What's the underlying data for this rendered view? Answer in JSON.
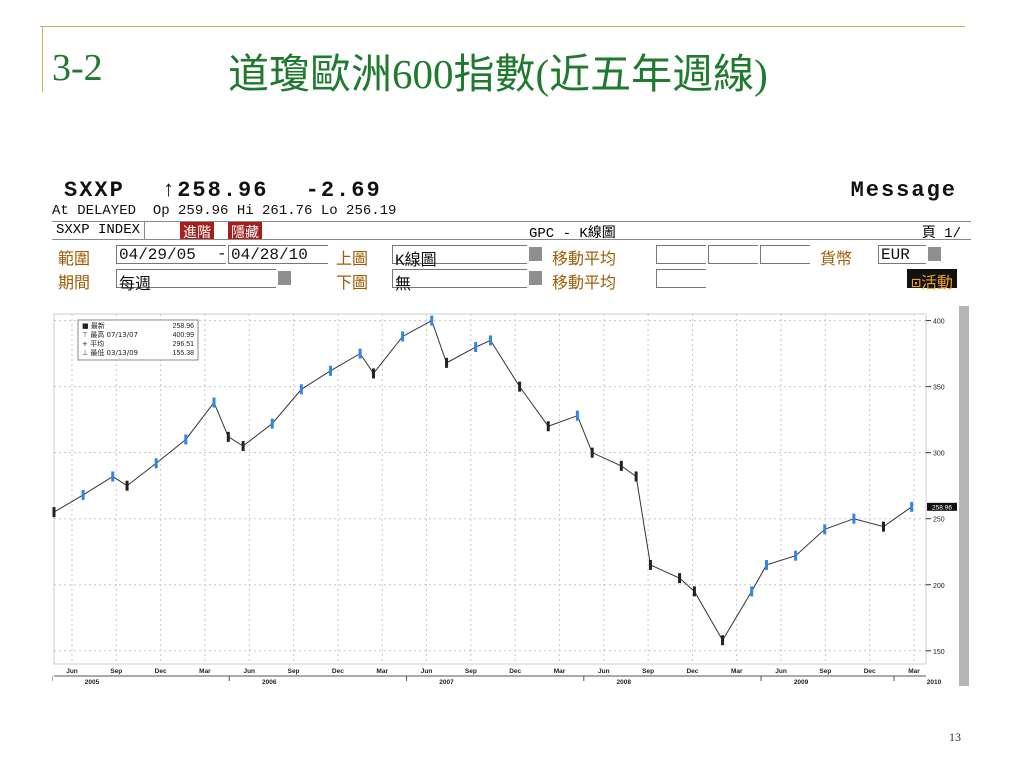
{
  "slide": {
    "number": "3-2",
    "title": "道瓊歐洲600指數(近五年週線)",
    "page_number": "13"
  },
  "terminal": {
    "ticker": "SXXP",
    "last": "↑258.96",
    "change": "-2.69",
    "message": "Message",
    "delayed_line": "At DELAYED  Op 259.96 Hi 261.76 Lo 256.19",
    "security": "SXXP INDEX",
    "advanced_btn": "進階",
    "hide_btn": "隱藏",
    "chart_title": "GPC - K線圖",
    "page_label": "頁 1/",
    "range_label": "範圍",
    "date_from": "04/29/05",
    "date_to": "04/28/10",
    "upper_label": "上圖",
    "upper_value": "K線圖",
    "ma_label": "移動平均",
    "currency_label": "貨幣",
    "currency_value": "EUR",
    "period_label": "期間",
    "period_value": "每週",
    "lower_label": "下圖",
    "lower_value": "無",
    "ma_label_2": "移動平均",
    "live_btn": "⊡活動"
  },
  "colors": {
    "title_green": "#1f7a2e",
    "candle_up": "#2f86e6",
    "candle_down": "#222222",
    "range_labels": "#a05a00"
  },
  "chart_data": {
    "type": "line",
    "title": "",
    "xlabel": "",
    "ylabel": "",
    "ylim": [
      140,
      405
    ],
    "yticks": [
      150,
      200,
      250,
      300,
      350,
      400
    ],
    "current_value_tag": "258.96",
    "x_month_ticks": [
      "Jun",
      "Sep",
      "Dec",
      "Mar",
      "Jun",
      "Sep",
      "Dec",
      "Mar",
      "Jun",
      "Sep",
      "Dec",
      "Mar",
      "Jun",
      "Sep",
      "Dec",
      "Mar",
      "Jun",
      "Sep",
      "Dec",
      "Mar"
    ],
    "x_year_labels": [
      {
        "year": "2005",
        "after_month": 0
      },
      {
        "year": "2006",
        "after_month": 4
      },
      {
        "year": "2007",
        "after_month": 8
      },
      {
        "year": "2008",
        "after_month": 12
      },
      {
        "year": "2009",
        "after_month": 16
      },
      {
        "year": "2010",
        "after_month": 19
      }
    ],
    "legend": [
      {
        "symbol": "■",
        "label": "最新",
        "date": "",
        "value": "258.96"
      },
      {
        "symbol": "⊤",
        "label": "最高",
        "date": "07/13/07",
        "value": "400.99"
      },
      {
        "symbol": "+",
        "label": "平均",
        "date": "",
        "value": "296.51"
      },
      {
        "symbol": "⊥",
        "label": "最低",
        "date": "03/13/09",
        "value": "155.38"
      }
    ],
    "series": [
      {
        "x": [
          "2005-05",
          "2005-07",
          "2005-09",
          "2005-10",
          "2005-12",
          "2006-02",
          "2006-04",
          "2006-05",
          "2006-06",
          "2006-08",
          "2006-10",
          "2006-12",
          "2007-02",
          "2007-03",
          "2007-05",
          "2007-07",
          "2007-08",
          "2007-10",
          "2007-11",
          "2008-01",
          "2008-03",
          "2008-05",
          "2008-06",
          "2008-08",
          "2008-09",
          "2008-10",
          "2008-12",
          "2009-01",
          "2009-03",
          "2009-05",
          "2009-06",
          "2009-08",
          "2009-10",
          "2009-12",
          "2010-02",
          "2010-04"
        ],
        "values": [
          255,
          268,
          282,
          275,
          292,
          310,
          338,
          312,
          305,
          322,
          348,
          362,
          375,
          360,
          388,
          400,
          368,
          380,
          385,
          350,
          320,
          328,
          300,
          290,
          282,
          215,
          205,
          195,
          158,
          195,
          215,
          222,
          242,
          250,
          244,
          259
        ]
      }
    ]
  }
}
